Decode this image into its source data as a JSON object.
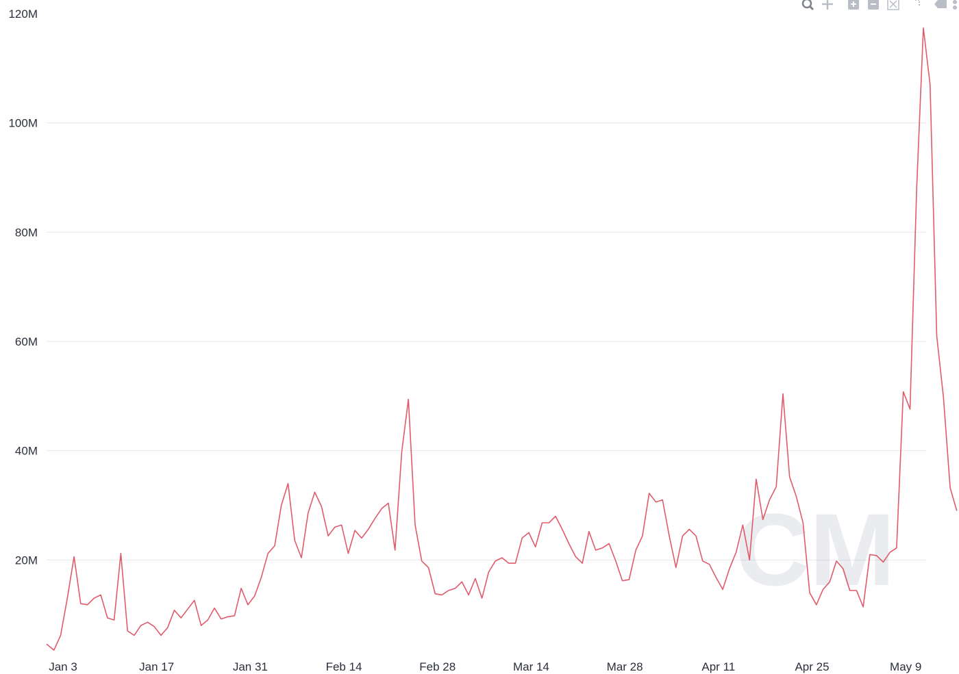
{
  "toolbar": {
    "icons": [
      "zoom-icon",
      "pan-icon",
      "zoom-in-icon",
      "zoom-out-icon",
      "autoscale-icon",
      "reset-axes-icon",
      "hover-compare-icon",
      "more-icon"
    ]
  },
  "watermark": {
    "text": "CM"
  },
  "chart_data": {
    "type": "line",
    "title": "",
    "xlabel": "",
    "ylabel": "",
    "ylim": [
      0,
      120000000
    ],
    "yticks": [
      20000000,
      40000000,
      60000000,
      80000000,
      100000000,
      120000000
    ],
    "ytick_labels": [
      "20M",
      "40M",
      "60M",
      "80M",
      "100M",
      "120M"
    ],
    "xticks": [
      "2022-01-03",
      "2022-01-17",
      "2022-01-31",
      "2022-02-14",
      "2022-02-28",
      "2022-03-14",
      "2022-03-28",
      "2022-04-11",
      "2022-04-25",
      "2022-05-09"
    ],
    "xtick_labels": [
      "Jan 3",
      "Jan 17",
      "Jan 31",
      "Feb 14",
      "Feb 28",
      "Mar 14",
      "Mar 28",
      "Apr 11",
      "Apr 25",
      "May 9"
    ],
    "x_range": [
      "2022-01-03",
      "2022-05-14"
    ],
    "grid": true,
    "line_color": "#e05a6a",
    "series": [
      {
        "x_start": "2022-01-03",
        "x_step_days": 1,
        "values": [
          4600000,
          3500000,
          6200000,
          13000000,
          20600000,
          12000000,
          11800000,
          13000000,
          13600000,
          9400000,
          9000000,
          21200000,
          7000000,
          6200000,
          8000000,
          8600000,
          7800000,
          6200000,
          7600000,
          10800000,
          9400000,
          11000000,
          12600000,
          8000000,
          9000000,
          11200000,
          9200000,
          9600000,
          9800000,
          14800000,
          11800000,
          13400000,
          16800000,
          21200000,
          22600000,
          30000000,
          34000000,
          23600000,
          20400000,
          28600000,
          32400000,
          29800000,
          24400000,
          26000000,
          26400000,
          21200000,
          25400000,
          24000000,
          25600000,
          27600000,
          29400000,
          30400000,
          21800000,
          39800000,
          49400000,
          26400000,
          19800000,
          18600000,
          13800000,
          13600000,
          14400000,
          14800000,
          16000000,
          13600000,
          16600000,
          13000000,
          17800000,
          19800000,
          20400000,
          19400000,
          19400000,
          24000000,
          25000000,
          22400000,
          26800000,
          26800000,
          28000000,
          25600000,
          23000000,
          20600000,
          19400000,
          25200000,
          21800000,
          22200000,
          23000000,
          19800000,
          16200000,
          16400000,
          21800000,
          24400000,
          32200000,
          30600000,
          31000000,
          24400000,
          18600000,
          24400000,
          25600000,
          24400000,
          19800000,
          19200000,
          16800000,
          14600000,
          18400000,
          21400000,
          26400000,
          20000000,
          34800000,
          27400000,
          31000000,
          33400000,
          50400000,
          35200000,
          31600000,
          26800000,
          14000000,
          11800000,
          14600000,
          16000000,
          19800000,
          18400000,
          14400000,
          14400000,
          11400000,
          21000000,
          20800000,
          19600000,
          21400000,
          22200000,
          50800000,
          47600000,
          88000000,
          117400000,
          107000000,
          61000000,
          49800000,
          33200000,
          29000000
        ]
      }
    ]
  }
}
